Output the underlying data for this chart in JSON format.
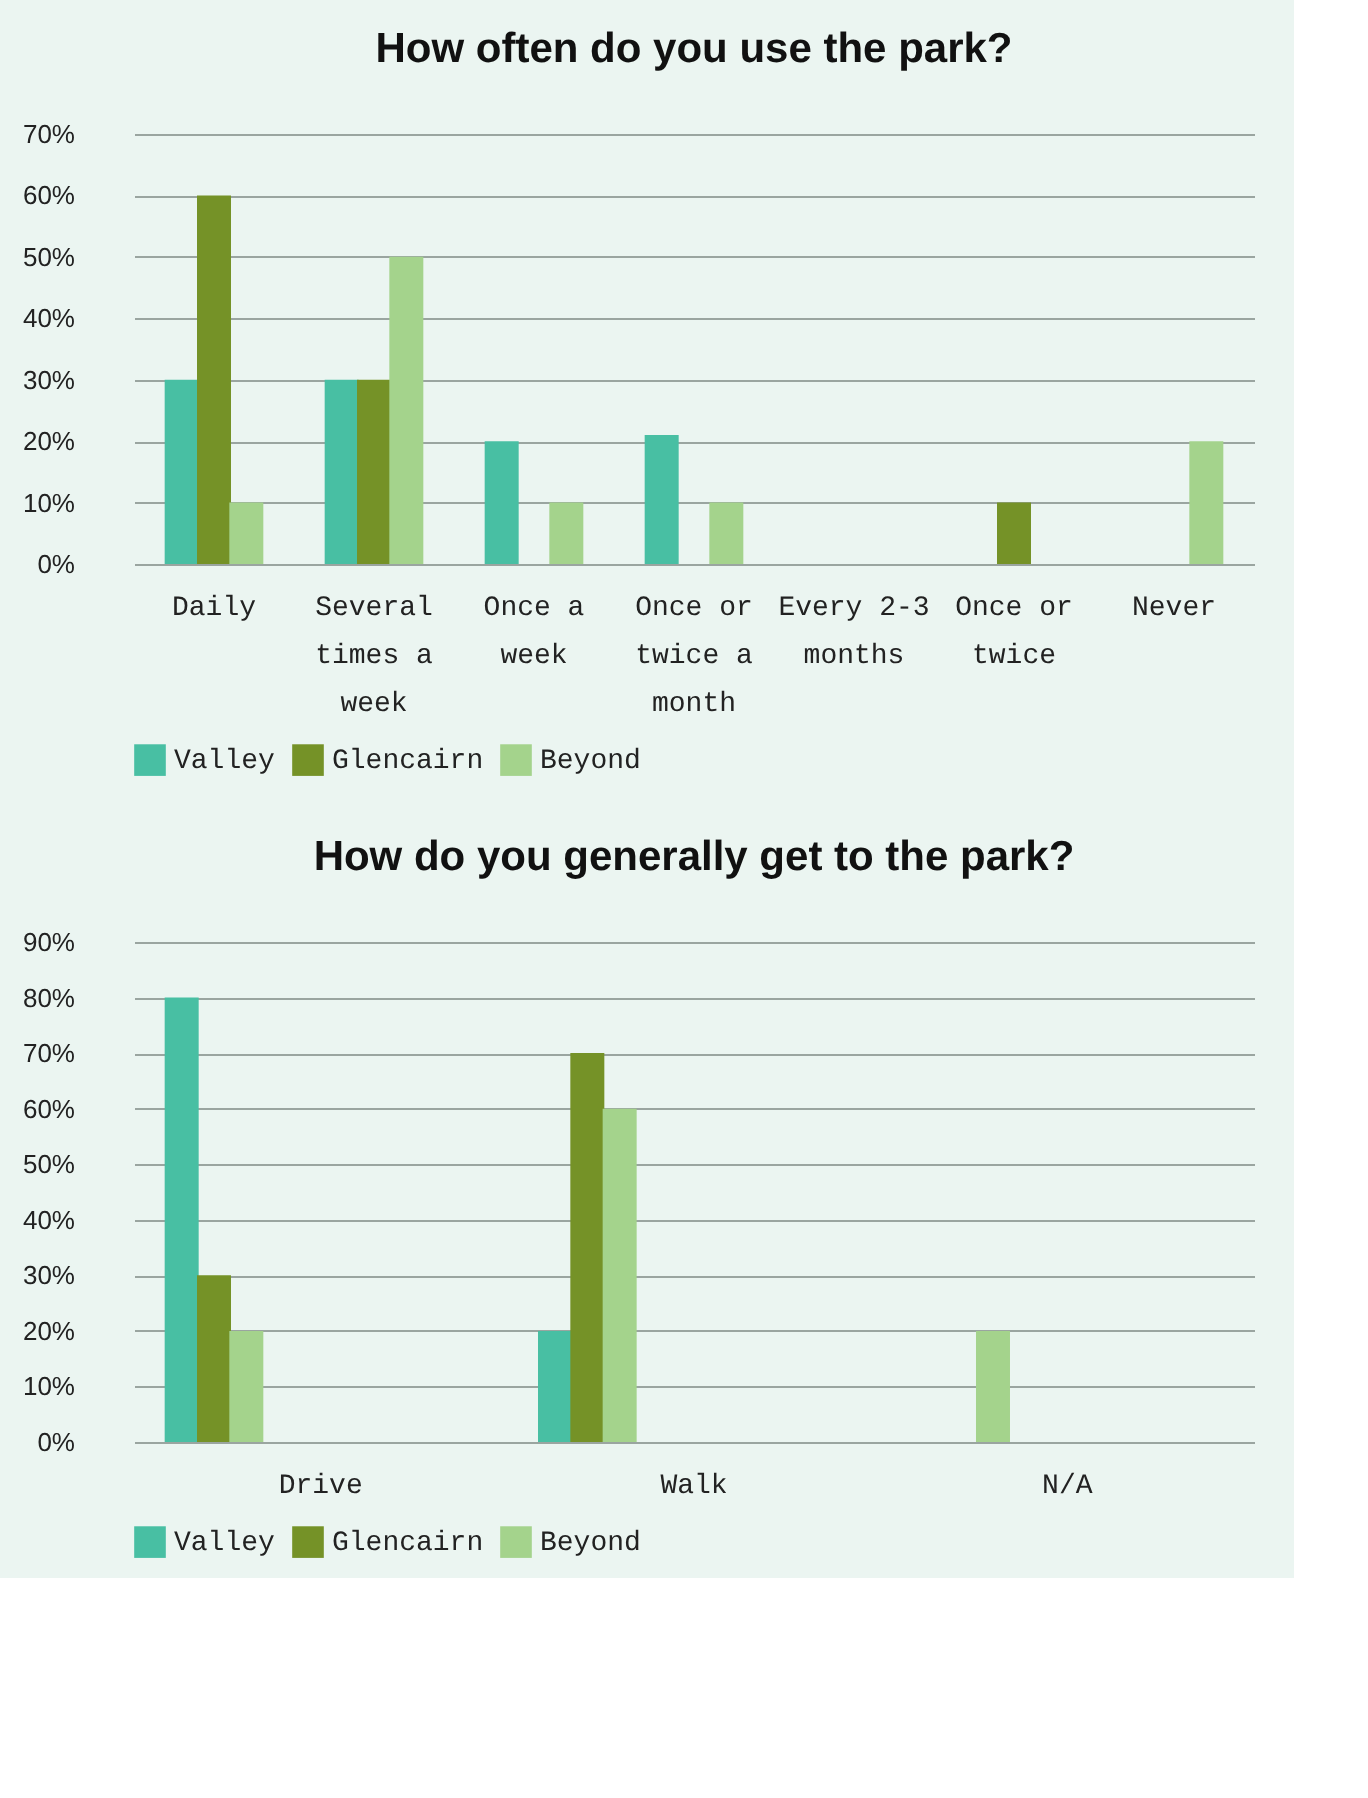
{
  "chart_data": [
    {
      "type": "bar",
      "title": "How often do you use the park?",
      "categories": [
        "Daily",
        "Several times a week",
        "Once a week",
        "Once or twice a month",
        "Every 2-3 months",
        "Once or twice",
        "Never"
      ],
      "series": [
        {
          "name": "Valley",
          "color": "#48bfa3",
          "values": [
            30,
            30,
            20,
            21,
            null,
            null,
            null
          ]
        },
        {
          "name": "Glencairn",
          "color": "#759227",
          "values": [
            60,
            30,
            null,
            null,
            null,
            10,
            null
          ]
        },
        {
          "name": "Beyond",
          "color": "#a4d38c",
          "values": [
            10,
            50,
            10,
            10,
            null,
            null,
            20
          ]
        }
      ],
      "ylim": [
        0,
        70
      ],
      "yticks": [
        {
          "value": 0,
          "label": "0%"
        },
        {
          "value": 10,
          "label": "10%"
        },
        {
          "value": 20,
          "label": "20%"
        },
        {
          "value": 30,
          "label": "30%"
        },
        {
          "value": 40,
          "label": "40%"
        },
        {
          "value": 50,
          "label": "50%"
        },
        {
          "value": 60,
          "label": "60%"
        },
        {
          "value": 70,
          "label": "70%"
        }
      ],
      "grid": "y",
      "legend": "bottom"
    },
    {
      "type": "bar",
      "title": "How do you generally get to the park?",
      "categories": [
        "Drive",
        "Walk",
        "N/A"
      ],
      "series": [
        {
          "name": "Valley",
          "color": "#48bfa3",
          "values": [
            80,
            20,
            null
          ]
        },
        {
          "name": "Glencairn",
          "color": "#759227",
          "values": [
            30,
            70,
            null
          ]
        },
        {
          "name": "Beyond",
          "color": "#a4d38c",
          "values": [
            20,
            60,
            20
          ]
        }
      ],
      "ylim": [
        0,
        90
      ],
      "yticks": [
        {
          "value": 0,
          "label": "0%"
        },
        {
          "value": 10,
          "label": "10%"
        },
        {
          "value": 20,
          "label": "20%"
        },
        {
          "value": 30,
          "label": "30%"
        },
        {
          "value": 40,
          "label": "40%"
        },
        {
          "value": 50,
          "label": "50%"
        },
        {
          "value": 60,
          "label": "60%"
        },
        {
          "value": 70,
          "label": "70%"
        },
        {
          "value": 80,
          "label": "80%"
        },
        {
          "value": 90,
          "label": "90%"
        }
      ],
      "grid": "y",
      "legend": "bottom"
    }
  ]
}
